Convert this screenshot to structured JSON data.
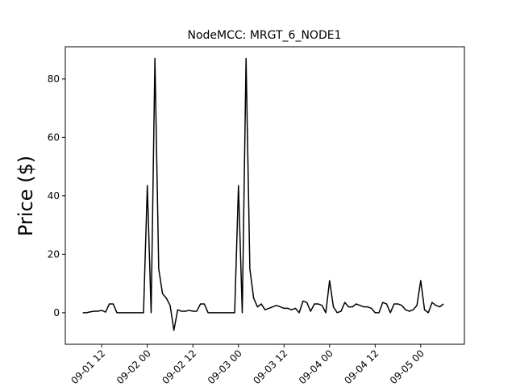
{
  "chart_data": {
    "type": "line",
    "title": "NodeMCC: MRGT_6_NODE1",
    "y_label": "Price ($)",
    "x": [
      7,
      8,
      9,
      10,
      11,
      12,
      13,
      14,
      15,
      16,
      17,
      18,
      19,
      20,
      21,
      22,
      23,
      24,
      25,
      26,
      27,
      28,
      29,
      30,
      31,
      32,
      33,
      34,
      35,
      36,
      37,
      38,
      39,
      40,
      41,
      42,
      43,
      44,
      45,
      46,
      47,
      48,
      49,
      50,
      51,
      52,
      53,
      54,
      55,
      56,
      57,
      58,
      59,
      60,
      61,
      62,
      63,
      64,
      65,
      66,
      67,
      68,
      69,
      70,
      71,
      72,
      73,
      74,
      75,
      76,
      77,
      78,
      79,
      80,
      81,
      82,
      83,
      84,
      85,
      86,
      87,
      88,
      89,
      90,
      91,
      92,
      93,
      94,
      95,
      96,
      97,
      98,
      99,
      100,
      101,
      102
    ],
    "series": [
      {
        "color": "#000000",
        "values": [
          0,
          0,
          0.3,
          0.5,
          0.5,
          0.8,
          0.2,
          3,
          3,
          0,
          0,
          0,
          0,
          0,
          0,
          0,
          0,
          43.5,
          0,
          87,
          15,
          6.5,
          5,
          2.5,
          -6,
          1,
          0.5,
          0.5,
          0.8,
          0.5,
          0.5,
          3,
          3,
          0,
          0,
          0,
          0,
          0,
          0,
          0,
          0,
          43.5,
          0,
          87,
          15,
          5,
          2,
          3,
          1,
          1.5,
          2,
          2.5,
          2,
          1.5,
          1.5,
          1,
          1.5,
          0,
          4,
          3.5,
          0.5,
          3,
          3,
          2.5,
          0,
          11,
          2,
          0,
          0.5,
          3.5,
          2,
          2,
          3,
          2.5,
          2,
          2,
          1.5,
          0,
          0,
          3.5,
          3,
          0,
          3,
          3,
          2.5,
          1,
          0.5,
          1,
          2.5,
          11,
          1,
          0,
          3.5,
          2.5,
          2,
          3
        ]
      }
    ],
    "xlim": [
      2.4,
      107.5
    ],
    "xticks": [
      {
        "value": 12,
        "label": "09-01 12"
      },
      {
        "value": 24,
        "label": "09-02 00"
      },
      {
        "value": 36,
        "label": "09-02 12"
      },
      {
        "value": 48,
        "label": "09-03 00"
      },
      {
        "value": 60,
        "label": "09-03 12"
      },
      {
        "value": 72,
        "label": "09-04 00"
      },
      {
        "value": 84,
        "label": "09-04 12"
      },
      {
        "value": 96,
        "label": "09-05 00"
      }
    ],
    "ylim": [
      -10.8,
      91
    ],
    "yticks": [
      0,
      20,
      40,
      60,
      80
    ],
    "grid": false
  }
}
